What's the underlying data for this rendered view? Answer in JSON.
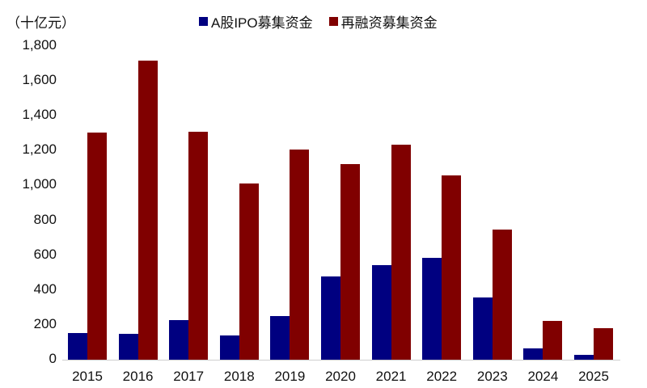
{
  "chart_data": {
    "type": "bar",
    "title": "",
    "unit_label": "（十亿元）",
    "xlabel": "",
    "ylabel": "（十亿元）",
    "ylim": [
      0,
      1800
    ],
    "yticks": [
      "0",
      "200",
      "400",
      "600",
      "800",
      "1,000",
      "1,200",
      "1,400",
      "1,600",
      "1,800"
    ],
    "grid": false,
    "legend_position": "top",
    "categories": [
      "2015",
      "2016",
      "2017",
      "2018",
      "2019",
      "2020",
      "2021",
      "2022",
      "2023",
      "2024",
      "2025"
    ],
    "series": [
      {
        "name": "A股IPO募集资金",
        "color": "#000080",
        "values": [
          153,
          148,
          227,
          139,
          250,
          478,
          543,
          584,
          357,
          65,
          28
        ]
      },
      {
        "name": "再融资募集资金",
        "color": "#800000",
        "values": [
          1303,
          1716,
          1308,
          1011,
          1206,
          1122,
          1234,
          1057,
          747,
          223,
          181
        ]
      }
    ]
  }
}
